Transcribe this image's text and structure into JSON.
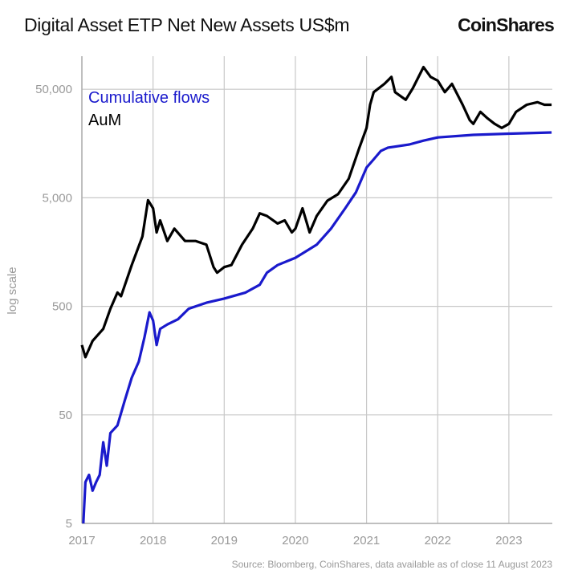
{
  "header": {
    "title": "Digital Asset ETP Net New Assets US$m",
    "logo": "CoinShares"
  },
  "footer": {
    "source": "Source: Bloomberg, CoinShares, data available as of close 11 August 2023"
  },
  "chart_data": {
    "type": "line",
    "title": "Digital Asset ETP Net New Assets US$m",
    "xlabel": "",
    "ylabel": "log scale",
    "y_scale": "log",
    "ylim": [
      5,
      100000
    ],
    "xlim": [
      2017.0,
      2023.62
    ],
    "x_ticks": [
      "2017",
      "2018",
      "2019",
      "2020",
      "2021",
      "2022",
      "2023"
    ],
    "y_ticks": [
      "5",
      "50",
      "500",
      "5,000",
      "50,000"
    ],
    "y_tick_values": [
      5,
      50,
      500,
      5000,
      50000
    ],
    "grid": true,
    "legend_placement": "top-left",
    "series": [
      {
        "name": "Cumulative flows",
        "color": "#1a1acc",
        "x": [
          2017.02,
          2017.05,
          2017.1,
          2017.15,
          2017.2,
          2017.25,
          2017.3,
          2017.35,
          2017.4,
          2017.5,
          2017.6,
          2017.7,
          2017.8,
          2017.88,
          2017.95,
          2018.0,
          2018.05,
          2018.1,
          2018.2,
          2018.35,
          2018.5,
          2018.75,
          2019.0,
          2019.3,
          2019.5,
          2019.6,
          2019.75,
          2020.0,
          2020.3,
          2020.5,
          2020.7,
          2020.85,
          2021.0,
          2021.1,
          2021.2,
          2021.3,
          2021.6,
          2021.8,
          2022.0,
          2022.5,
          2023.0,
          2023.6
        ],
        "y": [
          5,
          12,
          14,
          10,
          12,
          14,
          28,
          17,
          34,
          40,
          67,
          110,
          155,
          260,
          440,
          370,
          220,
          310,
          340,
          380,
          475,
          540,
          590,
          670,
          790,
          1020,
          1200,
          1400,
          1850,
          2600,
          4000,
          5600,
          9500,
          11300,
          13500,
          14500,
          15500,
          16800,
          18000,
          19000,
          19500,
          20000
        ]
      },
      {
        "name": "AuM",
        "color": "#000000",
        "x": [
          2017.0,
          2017.05,
          2017.15,
          2017.3,
          2017.4,
          2017.5,
          2017.55,
          2017.7,
          2017.85,
          2017.93,
          2018.0,
          2018.05,
          2018.1,
          2018.2,
          2018.3,
          2018.45,
          2018.6,
          2018.75,
          2018.85,
          2018.9,
          2019.0,
          2019.1,
          2019.25,
          2019.4,
          2019.5,
          2019.6,
          2019.75,
          2019.85,
          2019.95,
          2020.0,
          2020.1,
          2020.2,
          2020.3,
          2020.45,
          2020.6,
          2020.75,
          2020.9,
          2021.0,
          2021.05,
          2021.1,
          2021.25,
          2021.35,
          2021.4,
          2021.55,
          2021.65,
          2021.8,
          2021.9,
          2022.0,
          2022.1,
          2022.2,
          2022.35,
          2022.45,
          2022.5,
          2022.6,
          2022.7,
          2022.8,
          2022.9,
          2023.0,
          2023.1,
          2023.25,
          2023.4,
          2023.5,
          2023.6
        ],
        "y": [
          220,
          170,
          240,
          310,
          475,
          670,
          620,
          1200,
          2200,
          4750,
          4000,
          2400,
          3100,
          2000,
          2600,
          2000,
          2000,
          1850,
          1150,
          1020,
          1150,
          1200,
          1850,
          2600,
          3600,
          3400,
          2900,
          3100,
          2400,
          2600,
          4000,
          2400,
          3400,
          4700,
          5400,
          7500,
          14500,
          22000,
          36000,
          47000,
          56000,
          65000,
          47000,
          40000,
          51000,
          80000,
          65000,
          60000,
          47000,
          56000,
          36000,
          26000,
          24000,
          31000,
          27000,
          24000,
          22000,
          24000,
          31000,
          36000,
          38000,
          36000,
          36000
        ]
      }
    ]
  }
}
